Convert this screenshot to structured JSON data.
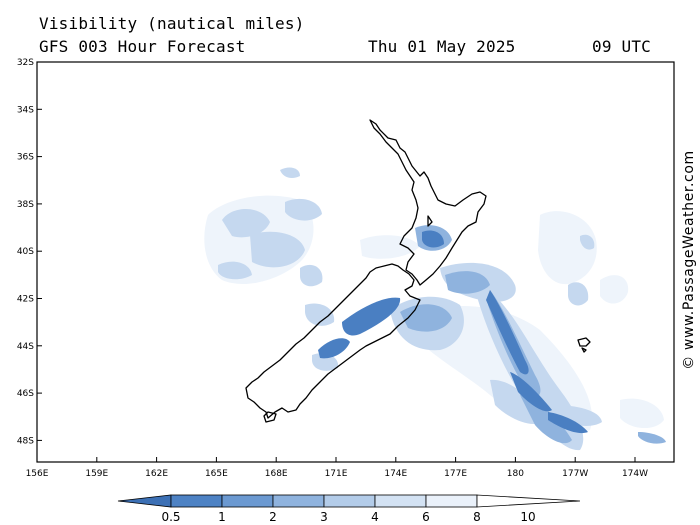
{
  "header": {
    "title": "Visibility (nautical miles)",
    "model": "GFS 003 Hour Forecast",
    "date": "Thu 01 May 2025",
    "time": "09 UTC"
  },
  "map": {
    "region": "New Zealand",
    "lat_labels": [
      "32S",
      "34S",
      "36S",
      "38S",
      "40S",
      "42S",
      "44S",
      "46S",
      "48S"
    ],
    "lon_labels": [
      "156E",
      "159E",
      "162E",
      "165E",
      "168E",
      "171E",
      "174E",
      "177E",
      "180",
      "177W",
      "174W"
    ]
  },
  "legend": {
    "labels": [
      "0.5",
      "1",
      "2",
      "3",
      "4",
      "6",
      "8",
      "10"
    ],
    "colors": [
      "#3c70b5",
      "#4d82c4",
      "#6b99d1",
      "#8fb3de",
      "#b3cce9",
      "#d3e2f3",
      "#eaf1fa",
      "#ffffff"
    ]
  },
  "credit": "© www.PassageWeather.com"
}
